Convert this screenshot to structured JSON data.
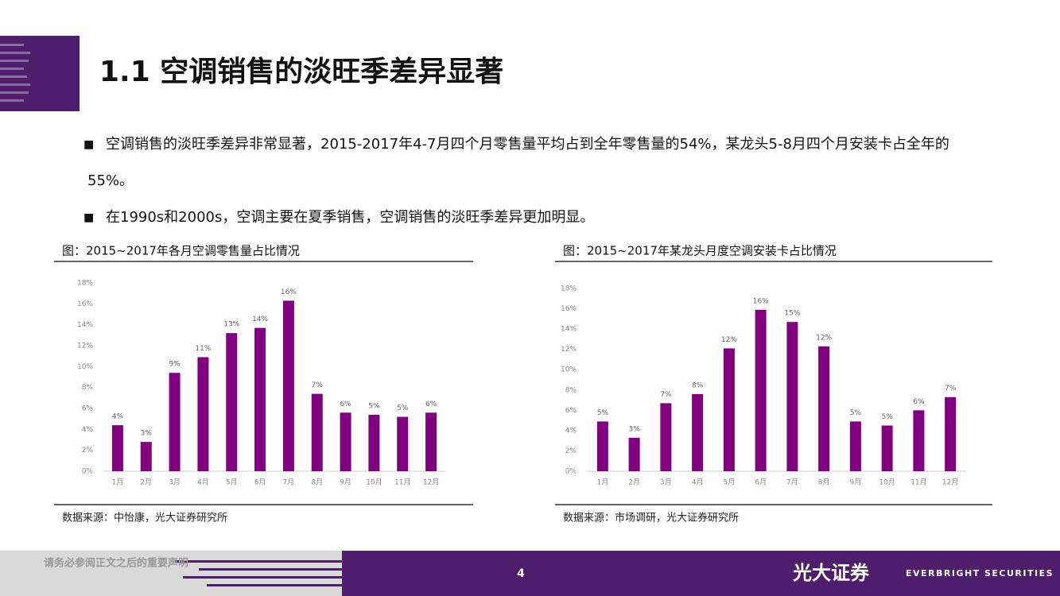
{
  "header": {
    "title": "1.1 空调销售的淡旺季差异显著"
  },
  "bullets": [
    "空调销售的淡旺季差异非常显著，2015-2017年4-7月四个月零售量平均占到全年零售量的54%，某龙头5-8月四个月安装卡占全年的55%。",
    "在1990s和2000s，空调主要在夏季销售，空调销售的淡旺季差异更加明显。"
  ],
  "chart_data": [
    {
      "type": "bar",
      "title": "图：2015~2017年各月空调零售量占比情况",
      "source": "数据来源：中怡康，光大证券研究所",
      "categories": [
        "1月",
        "2月",
        "3月",
        "4月",
        "5月",
        "6月",
        "7月",
        "8月",
        "9月",
        "10月",
        "11月",
        "12月"
      ],
      "values": [
        4.4,
        2.8,
        9.4,
        10.9,
        13.2,
        13.7,
        16.3,
        7.4,
        5.6,
        5.4,
        5.2,
        5.6
      ],
      "value_labels": [
        "4%",
        "3%",
        "9%",
        "11%",
        "13%",
        "14%",
        "16%",
        "7%",
        "6%",
        "5%",
        "5%",
        "6%"
      ],
      "color": "#800080",
      "ylim": [
        0,
        18
      ],
      "yticks": [
        {
          "value": 0,
          "label": "0%"
        },
        {
          "value": 2,
          "label": "2%"
        },
        {
          "value": 4,
          "label": "4%"
        },
        {
          "value": 6,
          "label": "6%"
        },
        {
          "value": 8,
          "label": "8%"
        },
        {
          "value": 10,
          "label": "10%"
        },
        {
          "value": 12,
          "label": "12%"
        },
        {
          "value": 14,
          "label": "14%"
        },
        {
          "value": 16,
          "label": "16%"
        },
        {
          "value": 18,
          "label": "18%"
        }
      ]
    },
    {
      "type": "bar",
      "title": "图：2015~2017年某龙头月度空调安装卡占比情况",
      "source": "数据来源：市场调研，光大证券研究所",
      "categories": [
        "1月",
        "2月",
        "3月",
        "4月",
        "5月",
        "6月",
        "7月",
        "8月",
        "9月",
        "10月",
        "11月",
        "12月"
      ],
      "values": [
        4.9,
        3.3,
        6.7,
        7.6,
        12.1,
        15.9,
        14.7,
        12.3,
        4.9,
        4.5,
        6.0,
        7.3
      ],
      "value_labels": [
        "5%",
        "3%",
        "7%",
        "8%",
        "12%",
        "16%",
        "15%",
        "12%",
        "5%",
        "5%",
        "6%",
        "7%"
      ],
      "color": "#800080",
      "ylim": [
        0,
        18
      ],
      "yticks": [
        {
          "value": 0,
          "label": "0%"
        },
        {
          "value": 2,
          "label": "2%"
        },
        {
          "value": 4,
          "label": "4%"
        },
        {
          "value": 6,
          "label": "6%"
        },
        {
          "value": 8,
          "label": "8%"
        },
        {
          "value": 10,
          "label": "10%"
        },
        {
          "value": 12,
          "label": "12%"
        },
        {
          "value": 14,
          "label": "14%"
        },
        {
          "value": 16,
          "label": "16%"
        },
        {
          "value": 18,
          "label": "18%"
        }
      ]
    }
  ],
  "footer": {
    "disclaimer": "请务必参阅正文之后的重要声明",
    "page": "4",
    "brand_cn": "光大证券",
    "brand_en": "EVERBRIGHT SECURITIES"
  }
}
